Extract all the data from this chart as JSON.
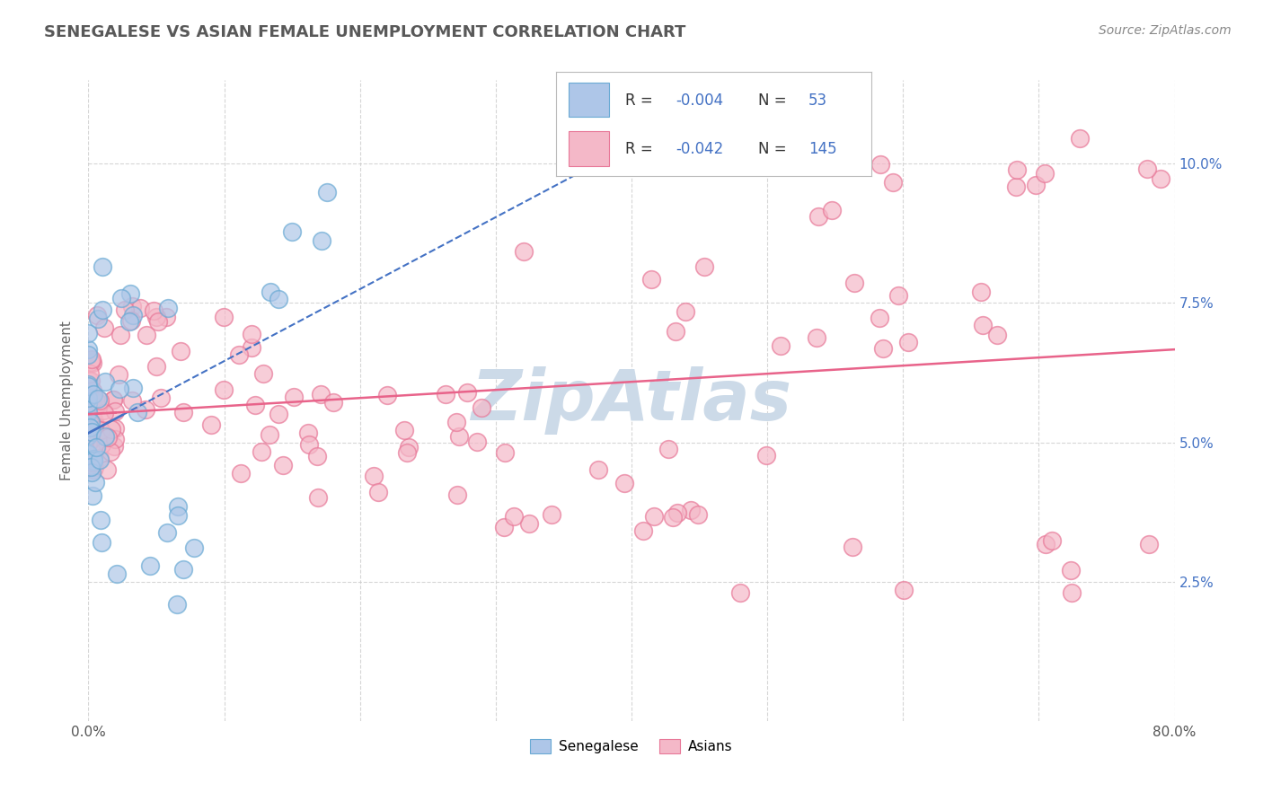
{
  "title": "SENEGALESE VS ASIAN FEMALE UNEMPLOYMENT CORRELATION CHART",
  "source_text": "Source: ZipAtlas.com",
  "ylabel": "Female Unemployment",
  "xlim": [
    0.0,
    0.8
  ],
  "ylim": [
    0.0,
    0.115
  ],
  "y_tick_values": [
    0.025,
    0.05,
    0.075,
    0.1
  ],
  "y_tick_labels": [
    "2.5%",
    "5.0%",
    "7.5%",
    "10.0%"
  ],
  "x_tick_values": [
    0.0,
    0.1,
    0.2,
    0.3,
    0.4,
    0.5,
    0.6,
    0.7,
    0.8
  ],
  "x_tick_labels": [
    "0.0%",
    "",
    "",
    "",
    "",
    "",
    "",
    "",
    "80.0%"
  ],
  "senegalese_color_fill": "#aec6e8",
  "senegalese_color_edge": "#6aaad4",
  "asian_color_fill": "#f4b8c8",
  "asian_color_edge": "#e87898",
  "senegalese_line_color": "#4472c4",
  "asian_line_color": "#e8638a",
  "background_color": "#ffffff",
  "grid_color": "#cccccc",
  "title_color": "#595959",
  "watermark_color": "#ccdae8",
  "right_tick_color": "#4472c4",
  "dot_size": 200,
  "dot_alpha": 0.7,
  "dot_linewidth": 1.2
}
